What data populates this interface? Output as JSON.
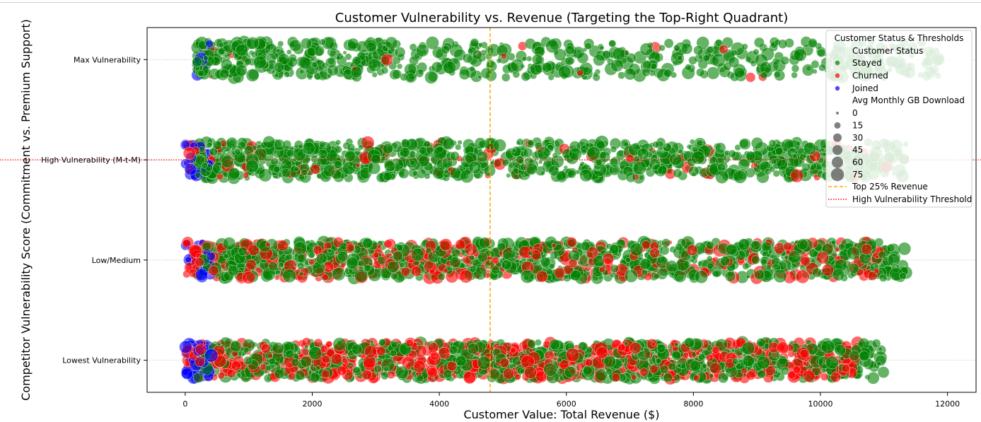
{
  "chart_data": {
    "type": "scatter",
    "title": "Customer Vulnerability vs. Revenue (Targeting the Top-Right Quadrant)",
    "xlabel": "Customer Value: Total Revenue ($)",
    "ylabel": "Competitor Vulnerability Score (Commitment vs. Premium Support)",
    "xlim": [
      -600,
      12450
    ],
    "x_ticks": [
      0,
      2000,
      4000,
      6000,
      8000,
      10000,
      12000
    ],
    "y_categories": [
      "Lowest Vulnerability",
      "Low/Medium",
      "High Vulnerability (M-t-M)",
      "Max Vulnerability"
    ],
    "y_values": [
      0,
      1,
      2,
      3
    ],
    "ylim": [
      -0.32,
      3.32
    ],
    "grid": "horizontal-dotted",
    "thresholds": {
      "top_revenue_x": 4800,
      "high_vulnerability_y": 2,
      "top_revenue_label": "Top 25% Revenue",
      "high_vulnerability_label": "High Vulnerability Threshold",
      "top_revenue_color": "#ffa500",
      "high_vulnerability_color": "#ff0000"
    },
    "legend": {
      "placement": "top-right",
      "title": "Customer Status & Thresholds",
      "hue_title": "Customer Status",
      "size_title": "Avg Monthly GB Download",
      "size_values": [
        0,
        15,
        30,
        45,
        60,
        75
      ]
    },
    "series": [
      {
        "name": "Stayed",
        "color": "#008000",
        "x_range": [
          [
            160,
            11000
          ],
          [
            190,
            11350
          ],
          [
            180,
            11350
          ],
          [
            180,
            12000
          ]
        ],
        "approx_count": [
          900,
          900,
          900,
          650
        ]
      },
      {
        "name": "Churned",
        "color": "#ff0000",
        "x_range": [
          [
            20,
            10600
          ],
          [
            20,
            11000
          ],
          [
            60,
            11100
          ],
          [
            400,
            11100
          ]
        ],
        "approx_count": [
          700,
          380,
          80,
          20
        ]
      },
      {
        "name": "Joined",
        "color": "#0000ff",
        "x_range": [
          [
            0,
            420
          ],
          [
            0,
            420
          ],
          [
            0,
            420
          ],
          [
            160,
            420
          ]
        ],
        "approx_count": [
          70,
          25,
          30,
          8
        ]
      }
    ]
  }
}
